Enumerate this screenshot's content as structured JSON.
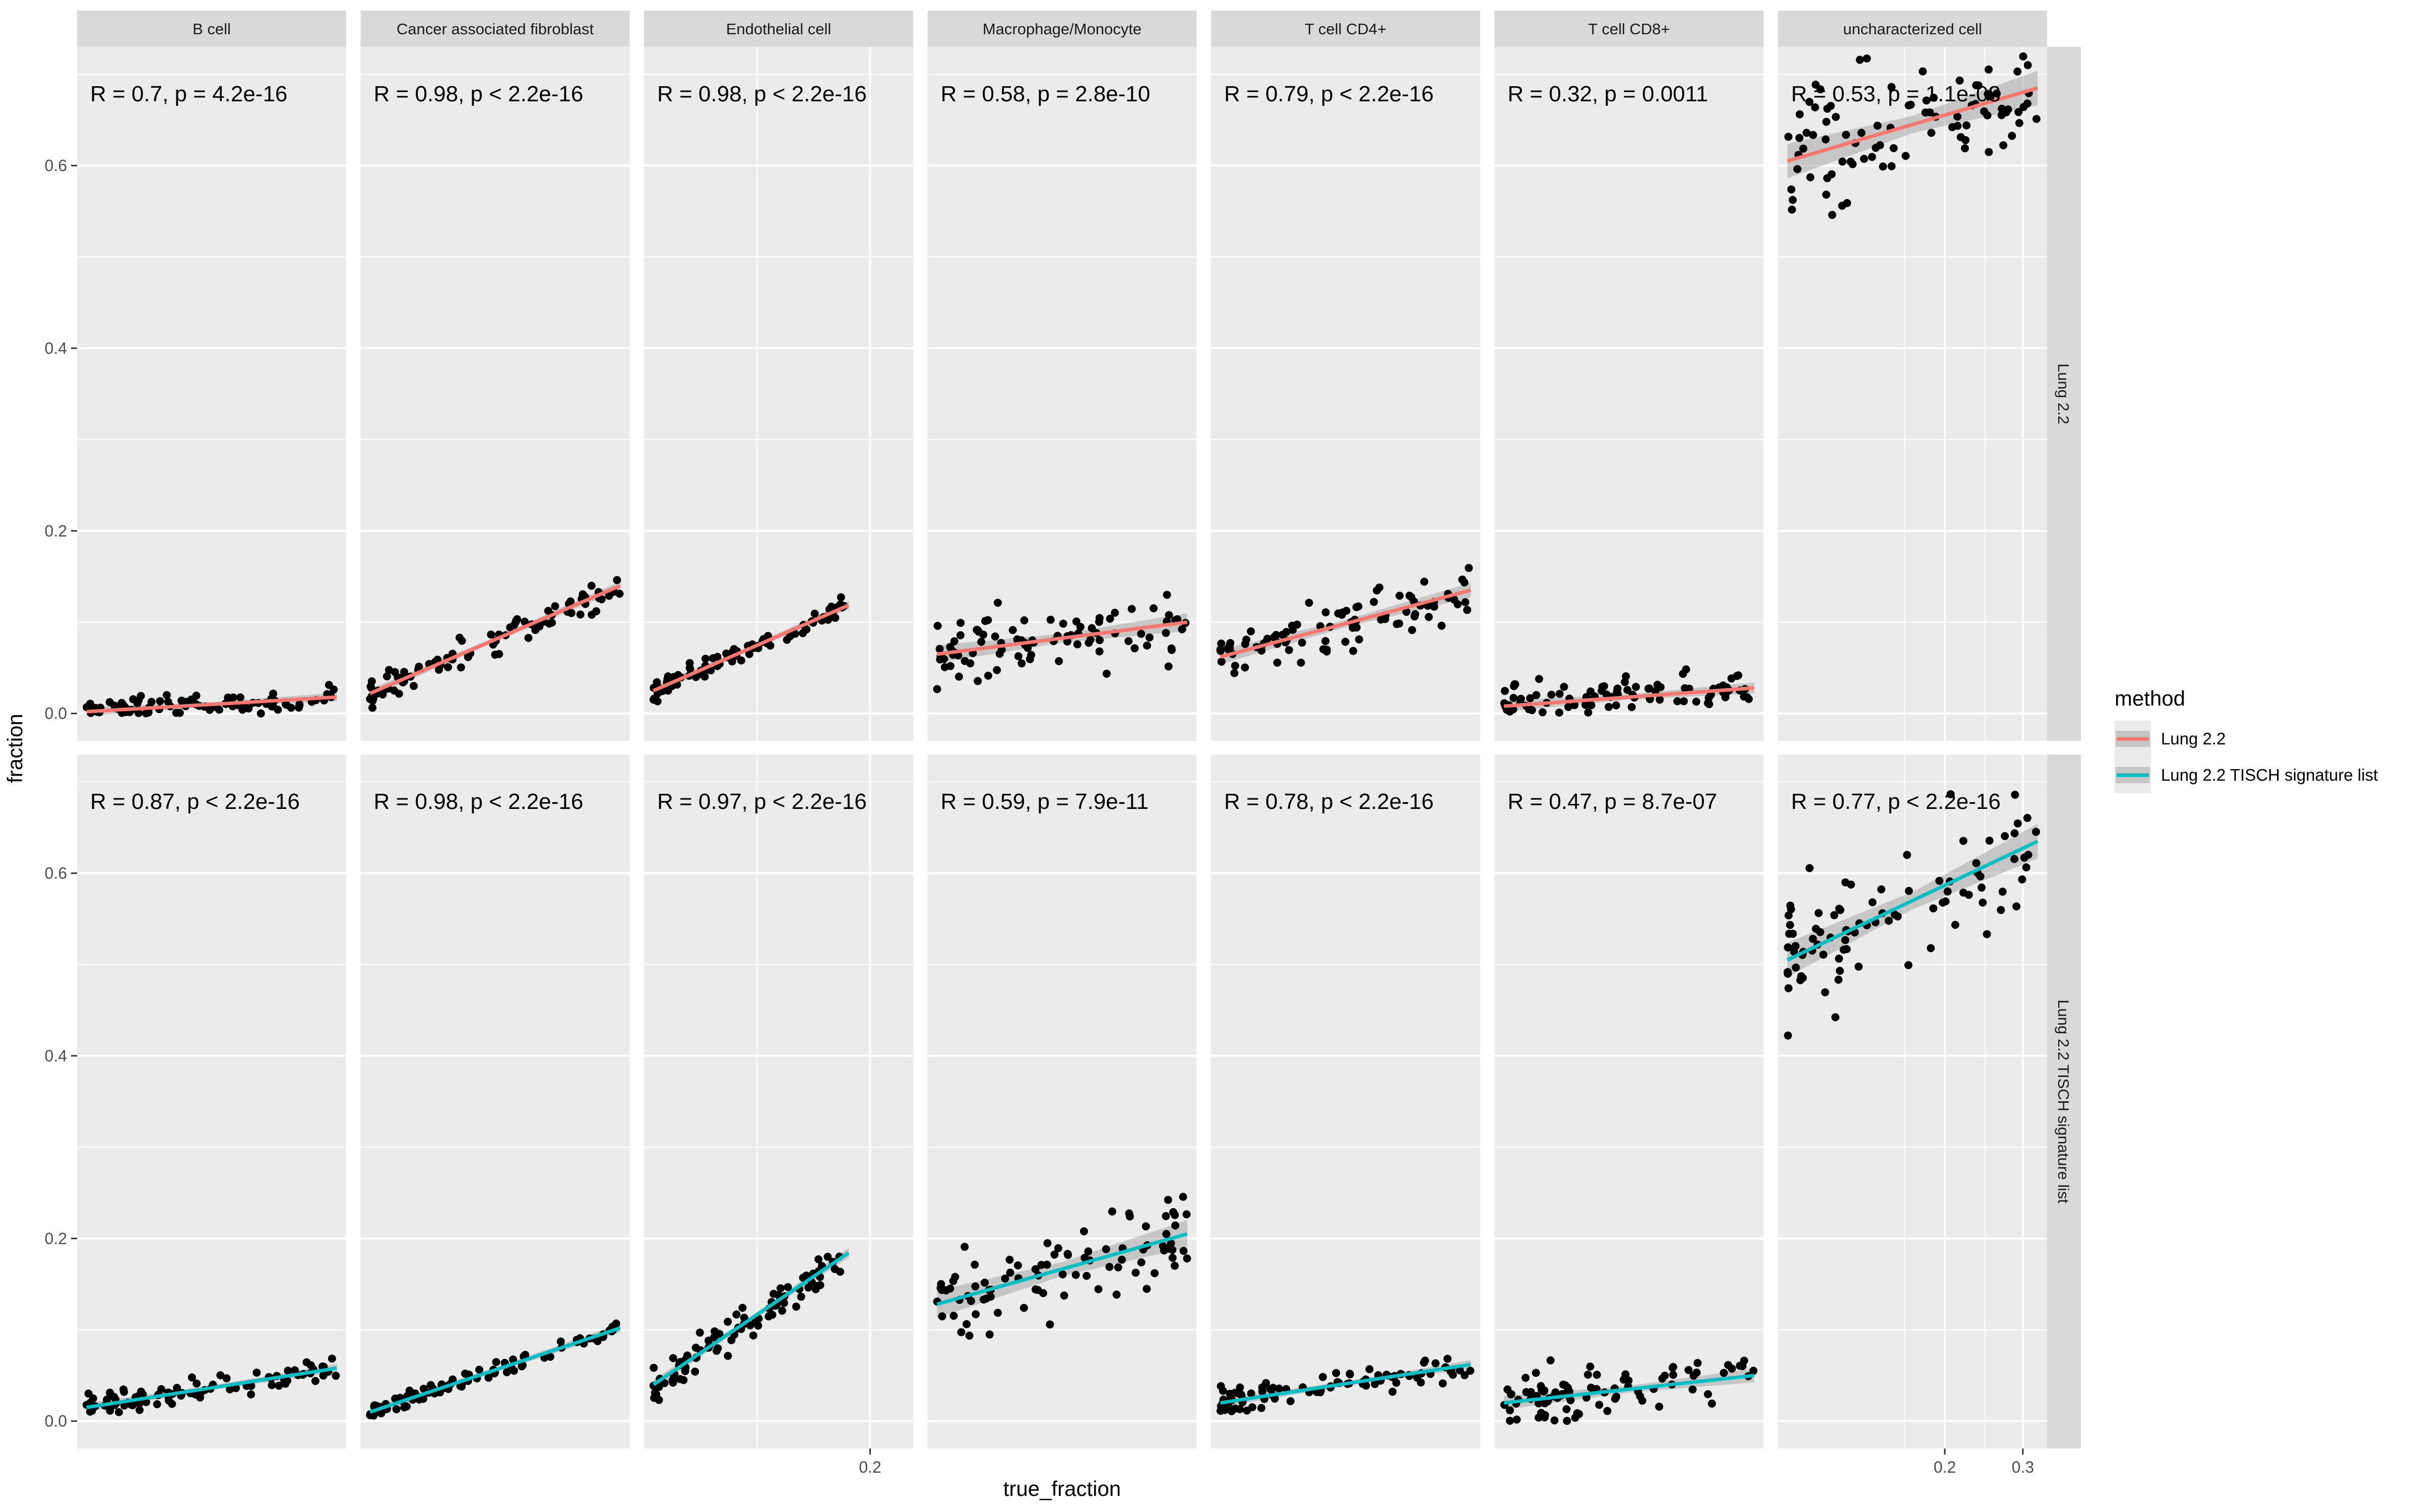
{
  "chart_data": {
    "type": "scatter",
    "xlabel": "true_fraction",
    "ylabel": "fraction",
    "legend": {
      "title": "method",
      "position": "right",
      "entries": [
        {
          "label": "Lung 2.2",
          "color": "#F8766D"
        },
        {
          "label": "Lung 2.2 TISCH signature list",
          "color": "#00BFC4"
        }
      ]
    },
    "columns": [
      "B cell",
      "Cancer associated fibroblast",
      "Endothelial cell",
      "Macrophage/Monocyte",
      "T cell CD4+",
      "T cell CD8+",
      "uncharacterized cell"
    ],
    "rows": [
      "Lung 2.2",
      "Lung 2.2 TISCH signature list"
    ],
    "y_ticks": [
      "0.0",
      "0.2",
      "0.4",
      "0.6"
    ],
    "ylim": [
      -0.03,
      0.73
    ],
    "x_ticks": {
      "Endothelial cell": [
        "0.2"
      ],
      "uncharacterized cell": [
        "0.2",
        "0.3"
      ]
    },
    "grid": true,
    "smooth_band": "95% confidence band shown in grey",
    "panels": [
      {
        "row": "Lung 2.2",
        "column": "B cell",
        "annotation": "R = 0.7, p = 4.2e-16",
        "fit": [
          [
            0.0,
            0.002
          ],
          [
            1.0,
            0.018
          ]
        ],
        "y_center": [
          0.002,
          0.018
        ],
        "noise": 0.006
      },
      {
        "row": "Lung 2.2",
        "column": "Cancer associated fibroblast",
        "annotation": "R = 0.98, p < 2.2e-16",
        "fit": [
          [
            0.0,
            0.022
          ],
          [
            1.0,
            0.14
          ]
        ],
        "y_center": [
          0.022,
          0.14
        ],
        "noise": 0.008
      },
      {
        "row": "Lung 2.2",
        "column": "Endothelial cell",
        "annotation": "R = 0.98, p < 2.2e-16",
        "fit": [
          [
            0.0,
            0.025
          ],
          [
            1.0,
            0.145
          ]
        ],
        "y_center": [
          0.025,
          0.145
        ],
        "noise": 0.006,
        "x_max": 0.78
      },
      {
        "row": "Lung 2.2",
        "column": "Macrophage/Monocyte",
        "annotation": "R = 0.58, p = 2.8e-10",
        "fit": [
          [
            0.0,
            0.065
          ],
          [
            1.0,
            0.1
          ]
        ],
        "y_center": [
          0.065,
          0.1
        ],
        "noise": 0.018
      },
      {
        "row": "Lung 2.2",
        "column": "T cell CD4+",
        "annotation": "R = 0.79, p < 2.2e-16",
        "fit": [
          [
            0.0,
            0.062
          ],
          [
            1.0,
            0.135
          ]
        ],
        "y_center": [
          0.062,
          0.135
        ],
        "noise": 0.015
      },
      {
        "row": "Lung 2.2",
        "column": "T cell CD8+",
        "annotation": "R = 0.32, p = 0.0011",
        "fit": [
          [
            0.0,
            0.008
          ],
          [
            1.0,
            0.028
          ]
        ],
        "y_center": [
          0.008,
          0.028
        ],
        "noise": 0.011
      },
      {
        "row": "Lung 2.2",
        "column": "uncharacterized cell",
        "annotation": "R = 0.53, p = 1.1e-08",
        "fit": [
          [
            0.0,
            0.605
          ],
          [
            1.0,
            0.685
          ]
        ],
        "y_center": [
          0.605,
          0.685
        ],
        "noise": 0.035
      },
      {
        "row": "Lung 2.2 TISCH signature list",
        "column": "B cell",
        "annotation": "R = 0.87, p < 2.2e-16",
        "fit": [
          [
            0.0,
            0.015
          ],
          [
            1.0,
            0.058
          ]
        ],
        "y_center": [
          0.015,
          0.058
        ],
        "noise": 0.006
      },
      {
        "row": "Lung 2.2 TISCH signature list",
        "column": "Cancer associated fibroblast",
        "annotation": "R = 0.98, p < 2.2e-16",
        "fit": [
          [
            0.0,
            0.01
          ],
          [
            1.0,
            0.102
          ]
        ],
        "y_center": [
          0.01,
          0.102
        ],
        "noise": 0.004
      },
      {
        "row": "Lung 2.2 TISCH signature list",
        "column": "Endothelial cell",
        "annotation": "R = 0.97, p < 2.2e-16",
        "fit": [
          [
            0.0,
            0.04
          ],
          [
            1.0,
            0.225
          ]
        ],
        "y_center": [
          0.04,
          0.225
        ],
        "noise": 0.01,
        "x_max": 0.78
      },
      {
        "row": "Lung 2.2 TISCH signature list",
        "column": "Macrophage/Monocyte",
        "annotation": "R = 0.59, p = 7.9e-11",
        "fit": [
          [
            0.0,
            0.128
          ],
          [
            1.0,
            0.205
          ]
        ],
        "y_center": [
          0.128,
          0.205
        ],
        "noise": 0.028
      },
      {
        "row": "Lung 2.2 TISCH signature list",
        "column": "T cell CD4+",
        "annotation": "R = 0.78, p < 2.2e-16",
        "fit": [
          [
            0.0,
            0.02
          ],
          [
            1.0,
            0.062
          ]
        ],
        "y_center": [
          0.02,
          0.062
        ],
        "noise": 0.008
      },
      {
        "row": "Lung 2.2 TISCH signature list",
        "column": "T cell CD8+",
        "annotation": "R = 0.47, p = 8.7e-07",
        "fit": [
          [
            0.0,
            0.02
          ],
          [
            1.0,
            0.05
          ]
        ],
        "y_center": [
          0.02,
          0.05
        ],
        "noise": 0.014
      },
      {
        "row": "Lung 2.2 TISCH signature list",
        "column": "uncharacterized cell",
        "annotation": "R = 0.77, p < 2.2e-16",
        "fit": [
          [
            0.0,
            0.505
          ],
          [
            1.0,
            0.635
          ]
        ],
        "y_center": [
          0.505,
          0.635
        ],
        "noise": 0.035
      }
    ]
  }
}
